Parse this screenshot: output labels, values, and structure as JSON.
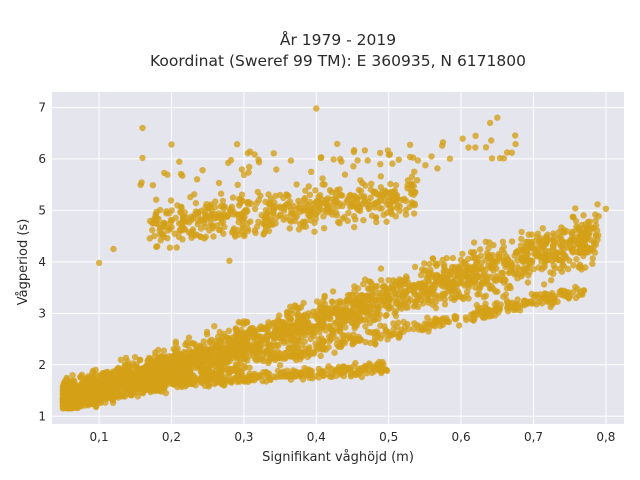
{
  "chart_data": {
    "type": "scatter",
    "title_line1": "År 1979 - 2019",
    "title_line2": "Koordinat (Sweref 99 TM): E 360935, N 6171800",
    "xlabel": "Signifikant våghöjd (m)",
    "ylabel": "Vågperiod (s)",
    "xlim": [
      0.035,
      0.825
    ],
    "ylim": [
      0.85,
      7.3
    ],
    "x_ticks": [
      0.1,
      0.2,
      0.3,
      0.4,
      0.5,
      0.6,
      0.7,
      0.8
    ],
    "x_tick_labels": [
      "0,1",
      "0,2",
      "0,3",
      "0,4",
      "0,5",
      "0,6",
      "0,7",
      "0,8"
    ],
    "y_ticks": [
      1,
      2,
      3,
      4,
      5,
      6,
      7
    ],
    "y_tick_labels": [
      "1",
      "2",
      "3",
      "4",
      "5",
      "6",
      "7"
    ],
    "grid": true,
    "legend": "none",
    "colors": {
      "marker": "#d4a017",
      "plot_bg": "#e5e5ee",
      "grid": "#ffffff"
    },
    "clusters": [
      {
        "name": "main-band",
        "x_range": [
          0.05,
          0.79
        ],
        "y_at_x_min": 1.35,
        "y_at_x_max": 4.5,
        "spread": 0.55,
        "count": 2600
      },
      {
        "name": "lower-band",
        "x_range": [
          0.05,
          0.77
        ],
        "y_at_x_min": 1.2,
        "y_at_x_max": 3.45,
        "spread": 0.12,
        "count": 500
      },
      {
        "name": "low-flat-band",
        "x_range": [
          0.15,
          0.5
        ],
        "y_at_x_min": 1.6,
        "y_at_x_max": 1.95,
        "spread": 0.12,
        "count": 320
      },
      {
        "name": "swell-cluster",
        "x_range": [
          0.17,
          0.54
        ],
        "y_at_x_min": 4.7,
        "y_at_x_max": 5.3,
        "spread": 0.4,
        "count": 520
      },
      {
        "name": "upper-scatter",
        "x_range": [
          0.15,
          0.68
        ],
        "y_at_x_min": 5.6,
        "y_at_x_max": 6.3,
        "spread": 0.35,
        "count": 70
      }
    ],
    "outlier_points": [
      {
        "x": 0.16,
        "y": 6.6
      },
      {
        "x": 0.4,
        "y": 6.98
      },
      {
        "x": 0.65,
        "y": 6.8
      },
      {
        "x": 0.2,
        "y": 6.28
      },
      {
        "x": 0.1,
        "y": 3.98
      },
      {
        "x": 0.8,
        "y": 5.03
      },
      {
        "x": 0.12,
        "y": 4.25
      },
      {
        "x": 0.62,
        "y": 6.45
      },
      {
        "x": 0.64,
        "y": 6.7
      },
      {
        "x": 0.67,
        "y": 6.12
      },
      {
        "x": 0.28,
        "y": 4.02
      },
      {
        "x": 0.16,
        "y": 6.02
      }
    ]
  }
}
